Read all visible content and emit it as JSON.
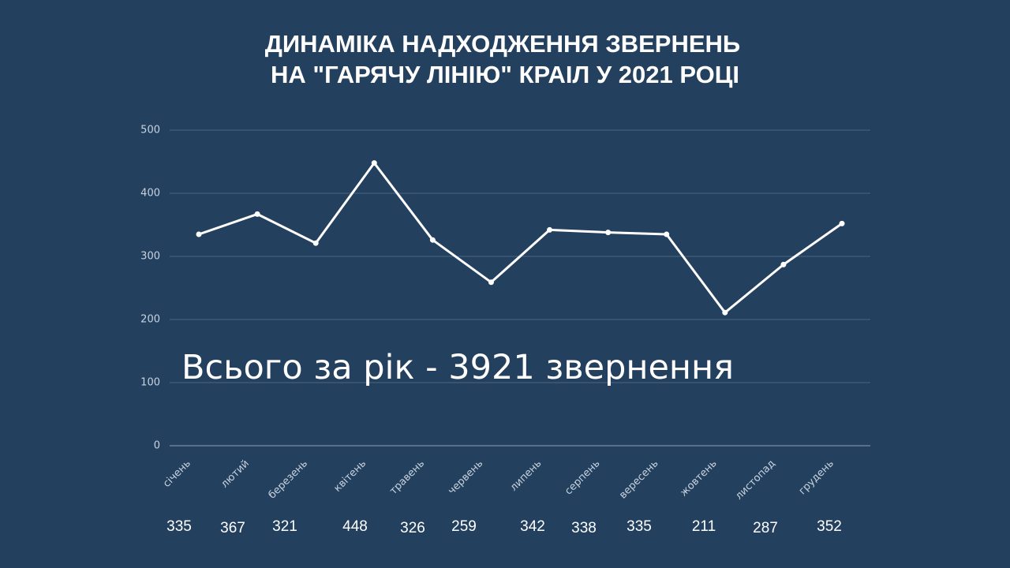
{
  "chart_data": {
    "type": "line",
    "title": [
      "ДИНАМІКА НАДХОДЖЕННЯ ЗВЕРНЕНЬ",
      "НА \"ГАРЯЧУ ЛІНІЮ\" КРАІЛ У 2021 РОЦІ"
    ],
    "annotation": "Всього за рік - 3921 звернення",
    "categories": [
      "січень",
      "лютий",
      "березень",
      "квітень",
      "травень",
      "червень",
      "липень",
      "серпень",
      "вересень",
      "жовтень",
      "листопад",
      "грудень"
    ],
    "series": [
      {
        "color": "#ffffff",
        "values": [
          335,
          367,
          321,
          448,
          326,
          259,
          342,
          338,
          335,
          211,
          287,
          352
        ]
      }
    ],
    "ylim": [
      0,
      500
    ],
    "yticks": [
      0,
      100,
      200,
      300,
      400,
      500
    ],
    "grid": true
  }
}
